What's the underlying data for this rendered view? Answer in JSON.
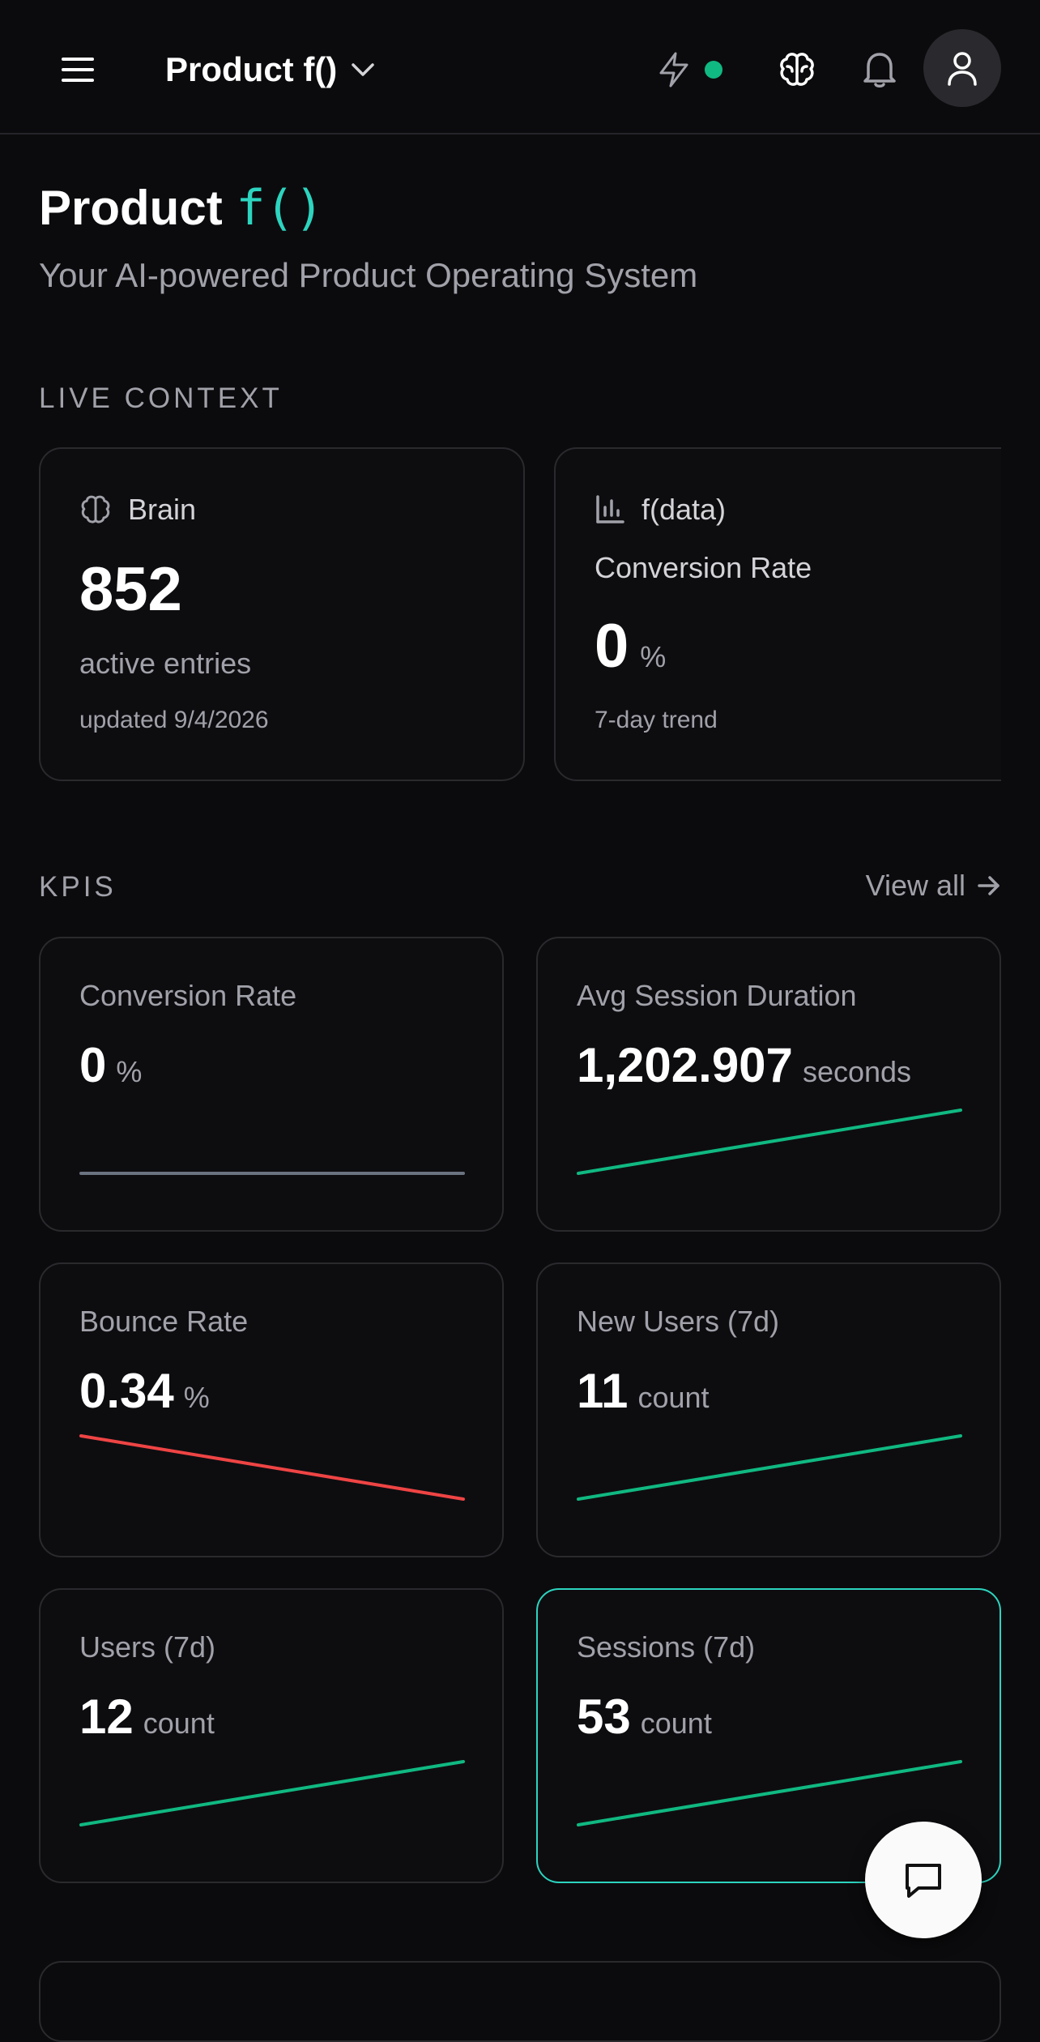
{
  "header": {
    "product_name": "Product f()",
    "status_color": "#10b981"
  },
  "hero": {
    "title_prefix": "Product",
    "title_suffix": "f()",
    "subtitle": "Your AI-powered Product Operating System"
  },
  "live_context": {
    "section_label": "LIVE CONTEXT",
    "brain": {
      "label": "Brain",
      "value": "852",
      "caption": "active entries",
      "updated": "updated 9/4/2026"
    },
    "data": {
      "label": "f(data)",
      "metric": "Conversion Rate",
      "value": "0",
      "unit": "%",
      "trend": "7-day trend"
    }
  },
  "kpis": {
    "section_label": "KPIS",
    "view_all": "View all",
    "items": [
      {
        "label": "Conversion Rate",
        "value": "0",
        "unit": "%",
        "trend": "flat",
        "color": "#6b7280"
      },
      {
        "label": "Avg Session Duration",
        "value": "1,202.907",
        "unit": "seconds",
        "trend": "up",
        "color": "#10b981"
      },
      {
        "label": "Bounce Rate",
        "value": "0.34",
        "unit": "%",
        "trend": "down",
        "color": "#ef4444"
      },
      {
        "label": "New Users (7d)",
        "value": "11",
        "unit": "count",
        "trend": "up",
        "color": "#10b981"
      },
      {
        "label": "Users (7d)",
        "value": "12",
        "unit": "count",
        "trend": "up",
        "color": "#10b981"
      },
      {
        "label": "Sessions (7d)",
        "value": "53",
        "unit": "count",
        "trend": "up",
        "color": "#10b981"
      }
    ]
  },
  "colors": {
    "accent": "#2dd4bf",
    "up": "#10b981",
    "down": "#ef4444",
    "flat": "#6b7280"
  },
  "icons": [
    "menu-icon",
    "chevron-down-icon",
    "lightning-icon",
    "brain-icon",
    "bell-icon",
    "user-icon",
    "bar-chart-icon",
    "arrow-right-icon",
    "chat-icon"
  ]
}
